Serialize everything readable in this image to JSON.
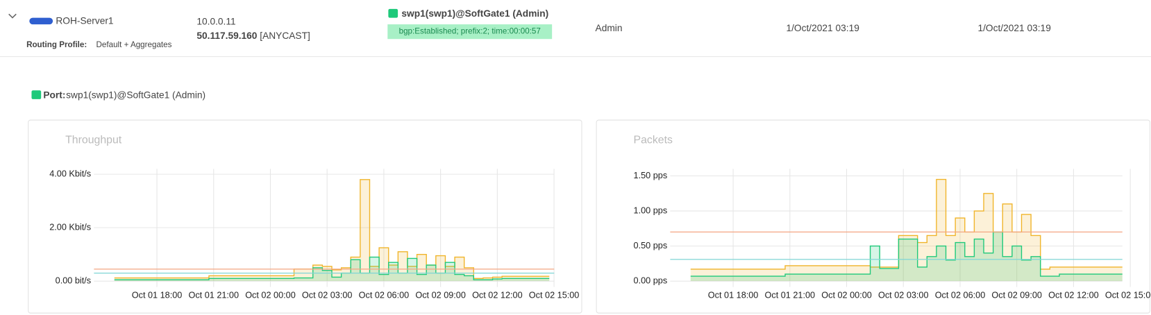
{
  "row": {
    "name": "ROH-Server1",
    "routing_profile_label": "Routing Profile:",
    "routing_profile": "Default + Aggregates",
    "ip": "10.0.0.11",
    "public_ip": "50.117.59.160",
    "public_ip_tag": "[ANYCAST]",
    "port": "swp1(swp1)@SoftGate1 (Admin)",
    "status": "bgp:Established; prefix:2; time:00:00:57",
    "owner": "Admin",
    "created": "1/Oct/2021 03:19",
    "updated": "1/Oct/2021 03:19"
  },
  "port_heading": {
    "label": "Port:",
    "value": "swp1(swp1)@SoftGate1 (Admin)"
  },
  "chart_data": [
    {
      "type": "line",
      "title": "Throughput",
      "x": [
        "Oct 01 16:00",
        "Oct 01 16:30",
        "Oct 01 17:00",
        "Oct 01 17:30",
        "Oct 01 18:00",
        "Oct 01 18:30",
        "Oct 01 19:00",
        "Oct 01 19:30",
        "Oct 01 20:00",
        "Oct 01 20:30",
        "Oct 01 21:00",
        "Oct 01 21:30",
        "Oct 01 22:00",
        "Oct 01 22:30",
        "Oct 01 23:00",
        "Oct 01 23:30",
        "Oct 02 00:00",
        "Oct 02 00:30",
        "Oct 02 01:00",
        "Oct 02 01:30",
        "Oct 02 02:00",
        "Oct 02 02:30",
        "Oct 02 03:00",
        "Oct 02 03:30",
        "Oct 02 04:00",
        "Oct 02 04:30",
        "Oct 02 05:00",
        "Oct 02 05:30",
        "Oct 02 06:00",
        "Oct 02 06:30",
        "Oct 02 07:00",
        "Oct 02 07:30",
        "Oct 02 08:00",
        "Oct 02 08:30",
        "Oct 02 09:00",
        "Oct 02 09:30",
        "Oct 02 10:00",
        "Oct 02 10:30",
        "Oct 02 11:00",
        "Oct 02 11:30",
        "Oct 02 12:00",
        "Oct 02 12:30",
        "Oct 02 13:00",
        "Oct 02 13:30",
        "Oct 02 14:00",
        "Oct 02 14:30"
      ],
      "xticks": [
        "Oct 01 18:00",
        "Oct 01 21:00",
        "Oct 02 00:00",
        "Oct 02 03:00",
        "Oct 02 06:00",
        "Oct 02 09:00",
        "Oct 02 12:00",
        "Oct 02 15:00"
      ],
      "ylim": [
        0,
        4.2
      ],
      "yticks": [
        {
          "value": 0,
          "label": "0.00 bit/s"
        },
        {
          "value": 2,
          "label": "2.00 Kbit/s"
        },
        {
          "value": 4,
          "label": "4.00 Kbit/s"
        }
      ],
      "grid": true,
      "reference_lines": [
        {
          "value": 0.45,
          "color": "#f4a582"
        },
        {
          "value": 0.3,
          "color": "#7fd6d6"
        }
      ],
      "series": [
        {
          "color": "#f0b429",
          "values": [
            0.12,
            0.12,
            0.12,
            0.12,
            0.12,
            0.12,
            0.12,
            0.12,
            0.12,
            0.12,
            0.2,
            0.2,
            0.2,
            0.2,
            0.2,
            0.2,
            0.2,
            0.2,
            0.2,
            0.45,
            0.45,
            0.6,
            0.55,
            0.42,
            0.5,
            0.9,
            3.8,
            0.55,
            1.25,
            0.6,
            1.1,
            0.55,
            1.0,
            0.6,
            0.95,
            0.55,
            0.9,
            0.5,
            0.1,
            0.12,
            0.15,
            0.18,
            0.18,
            0.18,
            0.18,
            0.18
          ]
        },
        {
          "color": "#1ec97a",
          "values": [
            0.05,
            0.05,
            0.05,
            0.05,
            0.05,
            0.05,
            0.05,
            0.05,
            0.05,
            0.05,
            0.1,
            0.1,
            0.1,
            0.1,
            0.1,
            0.1,
            0.1,
            0.1,
            0.1,
            0.12,
            0.12,
            0.5,
            0.4,
            0.15,
            0.3,
            0.8,
            0.3,
            0.9,
            0.25,
            0.7,
            0.3,
            0.85,
            0.25,
            0.6,
            0.3,
            0.7,
            0.25,
            0.2,
            0.05,
            0.05,
            0.08,
            0.1,
            0.1,
            0.1,
            0.1,
            0.1
          ]
        }
      ]
    },
    {
      "type": "line",
      "title": "Packets",
      "x": [
        "Oct 01 16:00",
        "Oct 01 16:30",
        "Oct 01 17:00",
        "Oct 01 17:30",
        "Oct 01 18:00",
        "Oct 01 18:30",
        "Oct 01 19:00",
        "Oct 01 19:30",
        "Oct 01 20:00",
        "Oct 01 20:30",
        "Oct 01 21:00",
        "Oct 01 21:30",
        "Oct 01 22:00",
        "Oct 01 22:30",
        "Oct 01 23:00",
        "Oct 01 23:30",
        "Oct 02 00:00",
        "Oct 02 00:30",
        "Oct 02 01:00",
        "Oct 02 01:30",
        "Oct 02 02:00",
        "Oct 02 02:30",
        "Oct 02 03:00",
        "Oct 02 03:30",
        "Oct 02 04:00",
        "Oct 02 04:30",
        "Oct 02 05:00",
        "Oct 02 05:30",
        "Oct 02 06:00",
        "Oct 02 06:30",
        "Oct 02 07:00",
        "Oct 02 07:30",
        "Oct 02 08:00",
        "Oct 02 08:30",
        "Oct 02 09:00",
        "Oct 02 09:30",
        "Oct 02 10:00",
        "Oct 02 10:30",
        "Oct 02 11:00",
        "Oct 02 11:30",
        "Oct 02 12:00",
        "Oct 02 12:30",
        "Oct 02 13:00",
        "Oct 02 13:30",
        "Oct 02 14:00",
        "Oct 02 14:30"
      ],
      "xticks": [
        "Oct 01 18:00",
        "Oct 01 21:00",
        "Oct 02 00:00",
        "Oct 02 03:00",
        "Oct 02 06:00",
        "Oct 02 09:00",
        "Oct 02 12:00",
        "Oct 02 15:00"
      ],
      "ylim": [
        0,
        1.6
      ],
      "yticks": [
        {
          "value": 0,
          "label": "0.00 pps"
        },
        {
          "value": 0.5,
          "label": "0.50 pps"
        },
        {
          "value": 1,
          "label": "1.00 pps"
        },
        {
          "value": 1.5,
          "label": "1.50 pps"
        }
      ],
      "grid": true,
      "reference_lines": [
        {
          "value": 0.7,
          "color": "#f4a582"
        },
        {
          "value": 0.31,
          "color": "#7fd6d6"
        }
      ],
      "series": [
        {
          "color": "#f0b429",
          "values": [
            0.17,
            0.17,
            0.17,
            0.17,
            0.17,
            0.17,
            0.17,
            0.17,
            0.17,
            0.17,
            0.22,
            0.22,
            0.22,
            0.22,
            0.22,
            0.22,
            0.22,
            0.22,
            0.22,
            0.2,
            0.2,
            0.2,
            0.65,
            0.65,
            0.55,
            0.65,
            1.45,
            0.65,
            0.9,
            0.7,
            1.0,
            1.25,
            0.7,
            1.1,
            0.7,
            0.95,
            0.65,
            0.17,
            0.2,
            0.2,
            0.2,
            0.2,
            0.2,
            0.2,
            0.2,
            0.2
          ]
        },
        {
          "color": "#1ec97a",
          "values": [
            0.07,
            0.07,
            0.07,
            0.07,
            0.07,
            0.07,
            0.07,
            0.07,
            0.07,
            0.07,
            0.1,
            0.1,
            0.1,
            0.1,
            0.1,
            0.1,
            0.1,
            0.1,
            0.1,
            0.5,
            0.18,
            0.18,
            0.6,
            0.6,
            0.2,
            0.35,
            0.5,
            0.3,
            0.55,
            0.35,
            0.6,
            0.4,
            0.7,
            0.35,
            0.5,
            0.3,
            0.35,
            0.07,
            0.07,
            0.1,
            0.1,
            0.1,
            0.1,
            0.1,
            0.1,
            0.1
          ]
        }
      ]
    }
  ]
}
